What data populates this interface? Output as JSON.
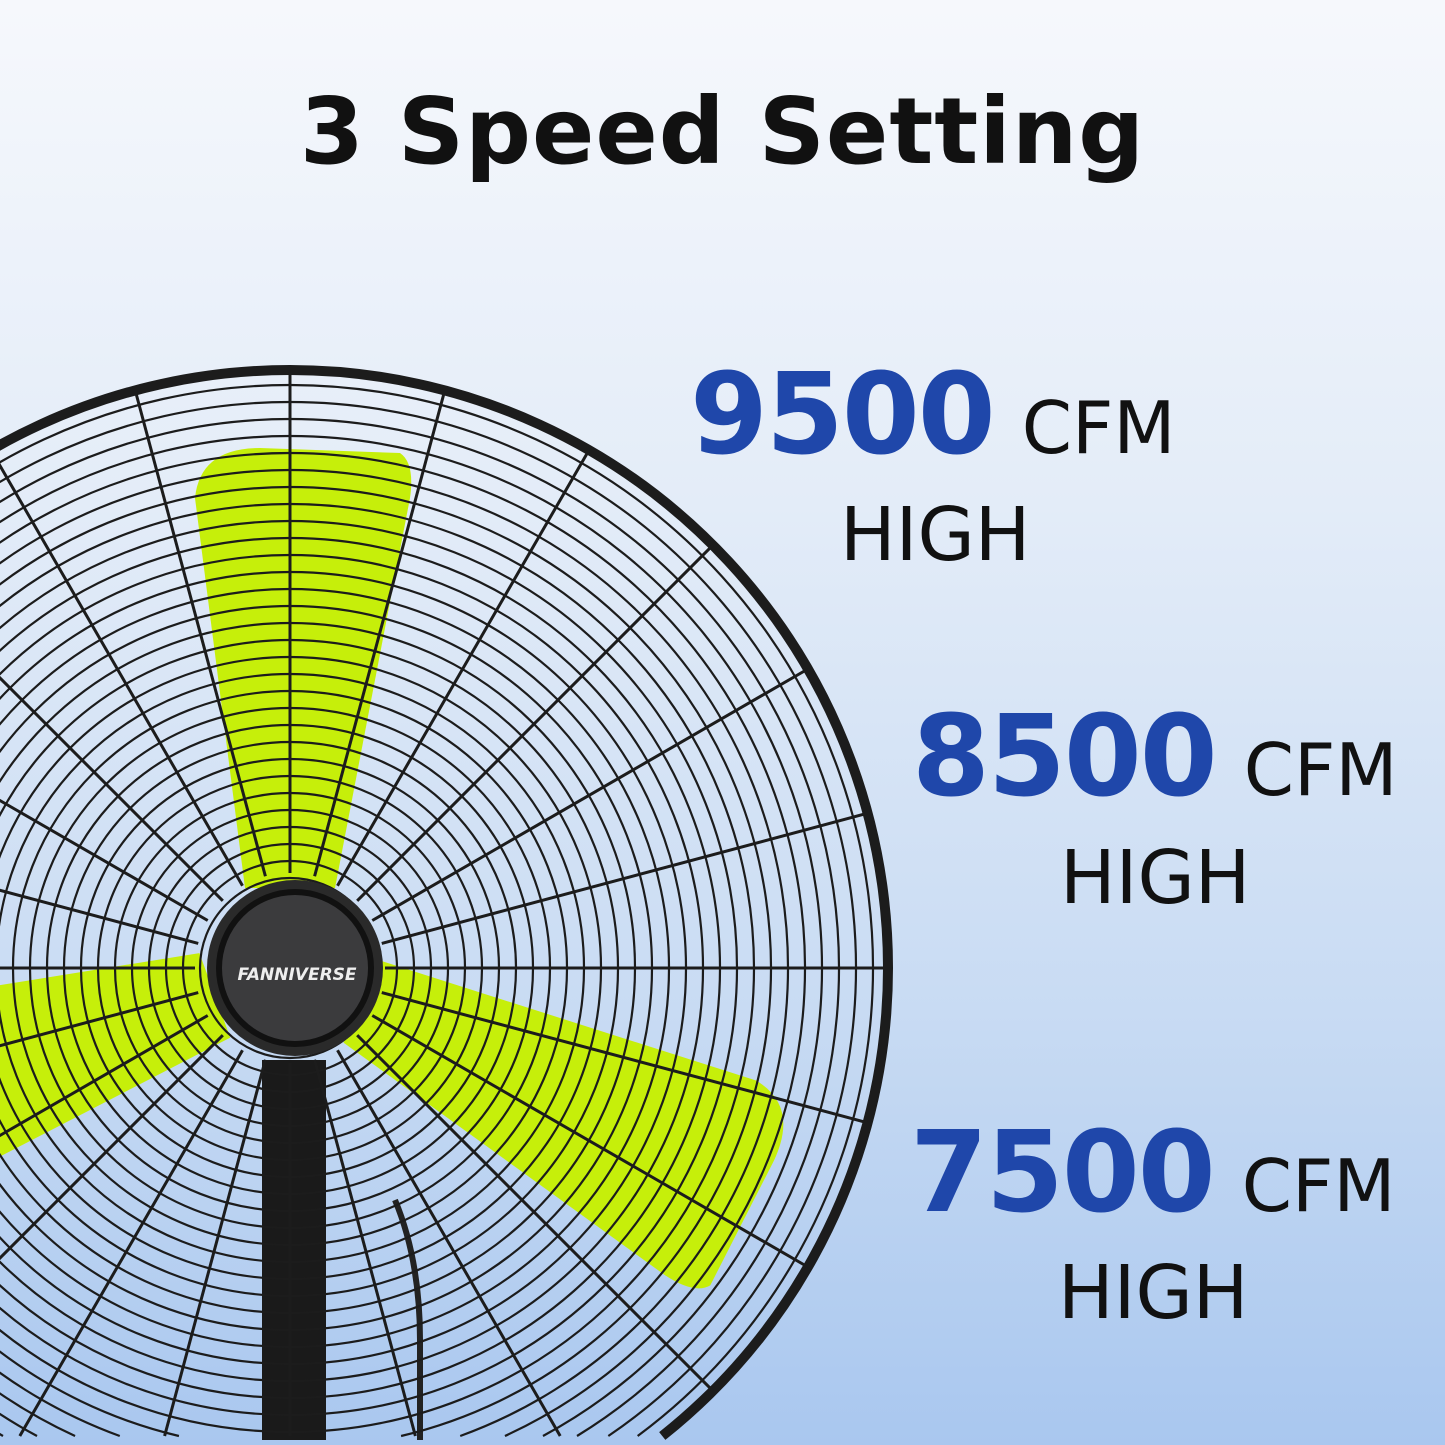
{
  "title": "3 Speed Setting",
  "brand": "FANNIVERSE",
  "speeds": [
    {
      "value": "9500",
      "unit": "CFM",
      "level": "HIGH"
    },
    {
      "value": "8500",
      "unit": "CFM",
      "level": "HIGH"
    },
    {
      "value": "7500",
      "unit": "CFM",
      "level": "HIGH"
    }
  ],
  "colors": {
    "accent": "#1f47aa",
    "blade": "#c6ef0a",
    "grille": "#1c1c1c"
  }
}
